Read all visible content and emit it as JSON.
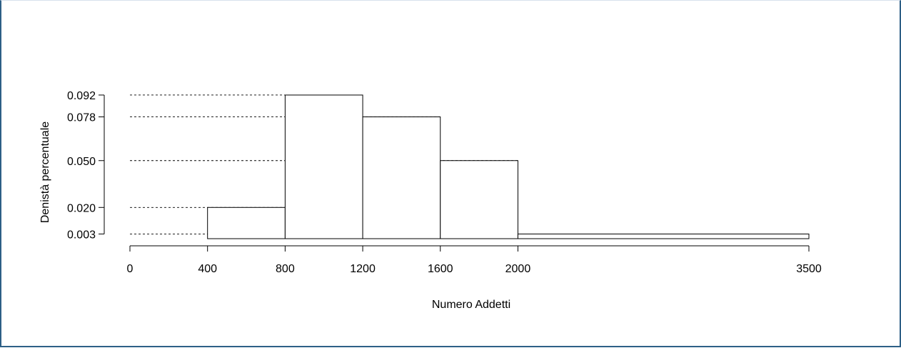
{
  "chart_data": {
    "type": "histogram",
    "xlabel": "Numero Addetti",
    "ylabel": "Denistà percentuale",
    "x_ticks": [
      0,
      400,
      800,
      1200,
      1600,
      2000,
      3500
    ],
    "x_tick_labels": [
      "0",
      "400",
      "800",
      "1200",
      "1600",
      "2000",
      "3500"
    ],
    "y_ticks": [
      0.003,
      0.02,
      0.05,
      0.078,
      0.092
    ],
    "y_tick_labels": [
      "0.003",
      "0.020",
      "0.050",
      "0.078",
      "0.092"
    ],
    "xlim": [
      0,
      3500
    ],
    "bins": [
      {
        "from": 400,
        "to": 800,
        "density": 0.02
      },
      {
        "from": 800,
        "to": 1200,
        "density": 0.092
      },
      {
        "from": 1200,
        "to": 1600,
        "density": 0.078
      },
      {
        "from": 1600,
        "to": 2000,
        "density": 0.05
      },
      {
        "from": 2000,
        "to": 3500,
        "density": 0.003
      }
    ],
    "reference_lines": "dashed",
    "grid": false,
    "bar_fill": "#ffffff",
    "bar_stroke": "#000000"
  }
}
